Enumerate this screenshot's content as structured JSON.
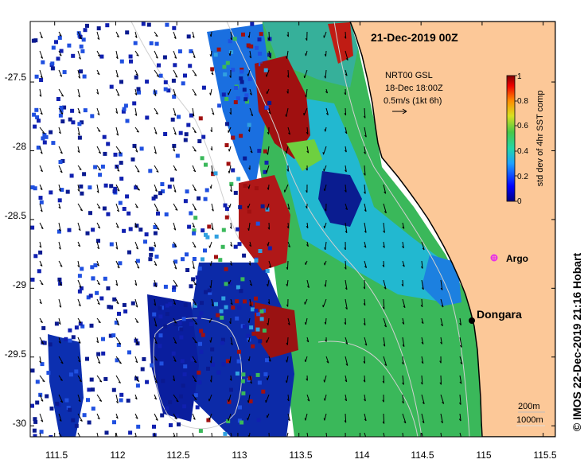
{
  "title": "21-Dec-2019 00Z",
  "source_line1": "NRT00 GSL",
  "source_line2": "18-Dec 18:00Z",
  "vector_scale": "0.5m/s (1kt 6h)",
  "credit": "© IMOS 22-Dec-2019 21:16 Hobart",
  "colorbar": {
    "label": "std dev of 4hr SST comp",
    "ticks": [
      "0",
      "0.2",
      "0.4",
      "0.6",
      "0.8",
      "1"
    ],
    "range": [
      0,
      1
    ]
  },
  "axes": {
    "x_ticks": [
      "111.5",
      "112",
      "112.5",
      "113",
      "113.5",
      "114",
      "114.5",
      "115",
      "115.5"
    ],
    "y_ticks": [
      "-27.5",
      "-28",
      "-28.5",
      "-29",
      "-29.5",
      "-30"
    ],
    "x_range": [
      111.3,
      115.6
    ],
    "y_range": [
      -30.08,
      -27.06
    ]
  },
  "places": [
    {
      "name": "Dongara",
      "lon": 114.93,
      "lat": -29.25
    },
    {
      "name": "Argo",
      "lon": 115.13,
      "lat": -28.84
    }
  ],
  "isobath_legend": [
    "200m",
    "1000m"
  ],
  "colors": {
    "land": "#fcc898",
    "ocean_missing": "#ffffff",
    "argo": "#e830e8"
  }
}
